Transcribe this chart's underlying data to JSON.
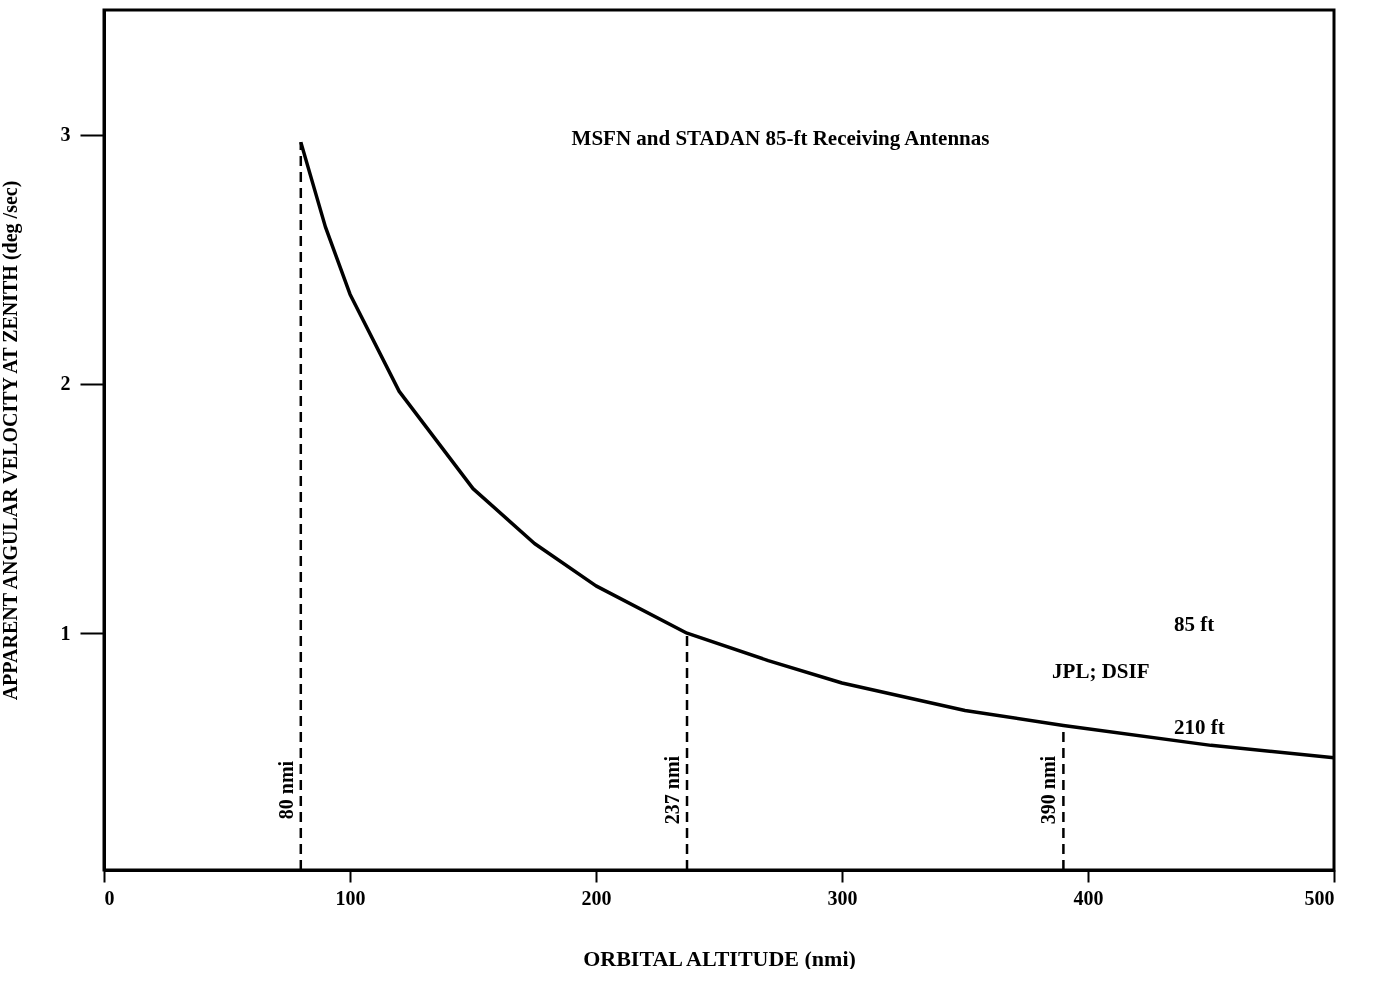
{
  "chart_data": {
    "type": "line",
    "xlabel": "ORBITAL ALTITUDE (nmi)",
    "ylabel": "APPARENT ANGULAR VELOCITY AT ZENITH (deg /sec)",
    "xlim": [
      0,
      500
    ],
    "ylim": [
      0.05,
      3.5
    ],
    "xticks": [
      0,
      100,
      200,
      300,
      400,
      500
    ],
    "yticks": [
      1,
      2,
      3
    ],
    "series": [
      {
        "color": "#000000",
        "x": [
          80,
          90,
          100,
          120,
          150,
          175,
          200,
          237,
          270,
          300,
          350,
          390,
          450,
          500
        ],
        "values": [
          2.97,
          2.63,
          2.36,
          1.97,
          1.58,
          1.36,
          1.19,
          1.0,
          0.89,
          0.8,
          0.69,
          0.63,
          0.55,
          0.5
        ]
      }
    ],
    "ref_lines": [
      {
        "axis": "x",
        "value": 80,
        "label": "80 nmi",
        "line_style": "dashed"
      },
      {
        "axis": "x",
        "value": 237,
        "label": "237 nmi",
        "line_style": "dashed"
      },
      {
        "axis": "x",
        "value": 390,
        "label": "390 nmi",
        "line_style": "dashed"
      }
    ],
    "annotations": [
      "MSFN and STADAN 85-ft Receiving Antennas",
      "JPL; DSIF",
      "85 ft",
      "210 ft"
    ],
    "grid": false,
    "marker": "none",
    "line_style": "solid"
  }
}
